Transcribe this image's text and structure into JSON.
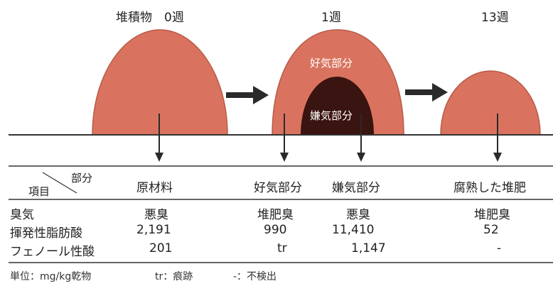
{
  "stages": [
    {
      "label": "堆積物　0週"
    },
    {
      "label": "1週"
    },
    {
      "label": "13週"
    }
  ],
  "inner": {
    "aerobic": "好気部分",
    "anaerobic": "嫌気部分"
  },
  "table": {
    "corner_top": "部分",
    "corner_bottom": "項目",
    "columns": [
      "原材料",
      "好気部分",
      "嫌気部分",
      "腐熟した堆肥"
    ],
    "rows": [
      {
        "label": "臭気",
        "values": [
          "悪臭",
          "堆肥臭",
          "悪臭",
          "堆肥臭"
        ]
      },
      {
        "label": "揮発性脂肪酸",
        "values": [
          "2,191",
          "990",
          "11,410",
          "52"
        ]
      },
      {
        "label": "フェノール性酸",
        "values": [
          "201",
          "tr",
          "1,147",
          "-"
        ]
      }
    ]
  },
  "footnotes": [
    "単位：mg/kg乾物",
    "tr：痕跡",
    "-：不検出"
  ],
  "colors": {
    "mound": "#d9735f",
    "mound_edge": "#b85a48",
    "anaerobic": "#3a1410",
    "line": "#333333"
  }
}
